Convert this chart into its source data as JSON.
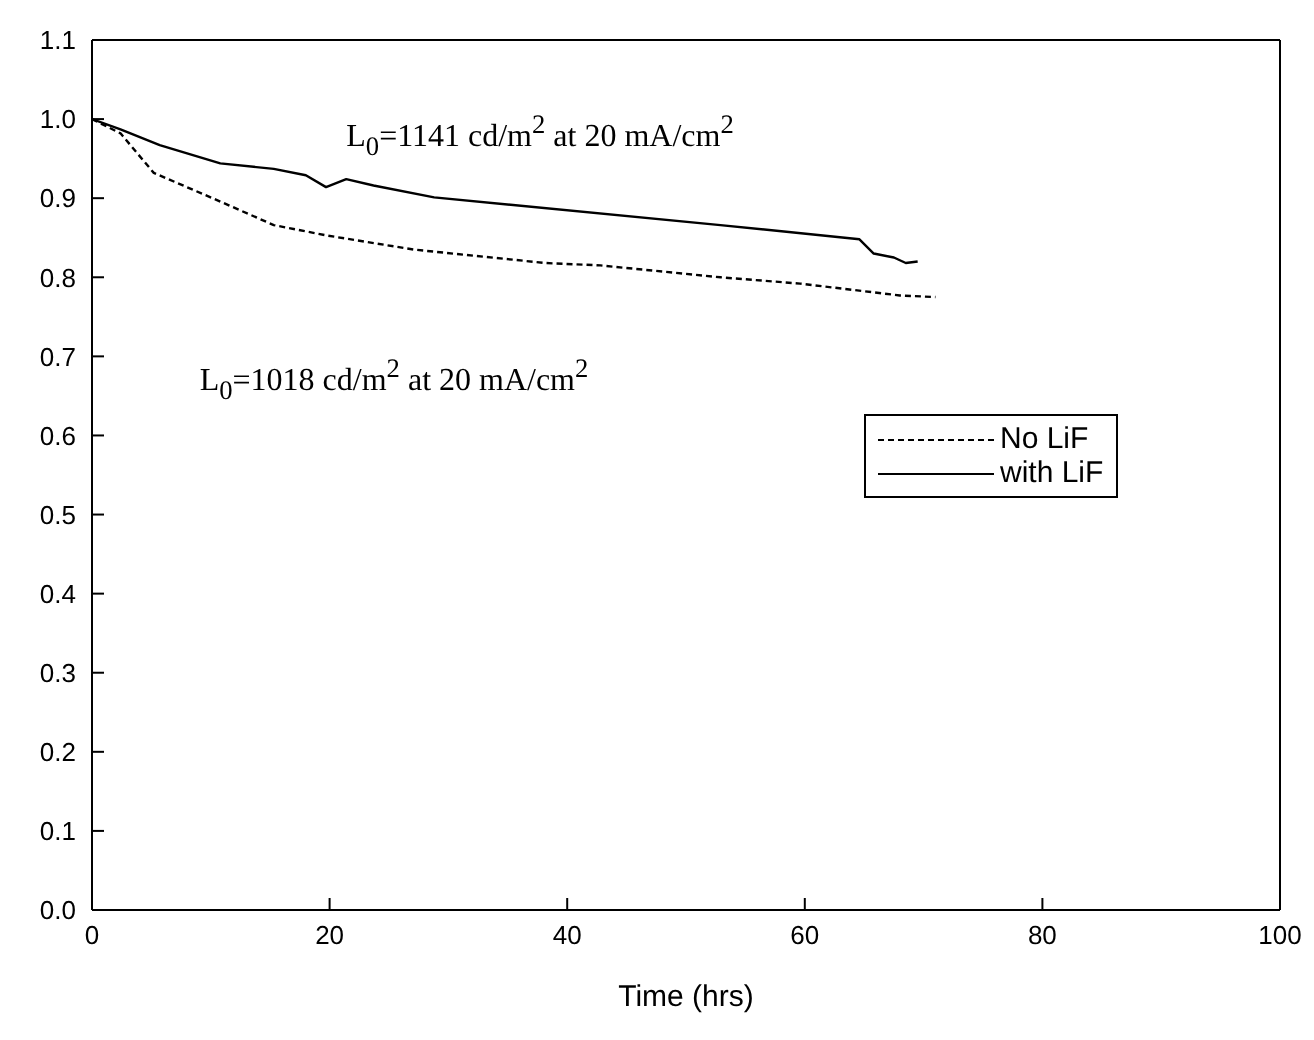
{
  "chart_data": {
    "type": "line",
    "xlabel": "Time (hrs)",
    "xlim": [
      0,
      100
    ],
    "xticks": [
      0,
      20,
      40,
      60,
      80,
      100
    ],
    "ylim": [
      0,
      1.1
    ],
    "yticks": [
      {
        "value": 0,
        "label": "0.0"
      },
      0.1,
      0.2,
      0.3,
      0.4,
      0.5,
      0.6,
      0.7,
      0.8,
      0.9,
      {
        "value": 1,
        "label": "1.0"
      },
      1.1
    ],
    "legend": "right",
    "marker": "none",
    "annotations": [
      "L$_{0}$=1141 cd/m$^{2}$ at 20 mA/cm$^{2}$",
      "L$_{0}$=1018 cd/m$^{2}$ at 20 mA/cm$^{2}$"
    ],
    "series": [
      {
        "name": "No LiF",
        "color": "#000000",
        "line_style": "dashed",
        "x": [
          0,
          2.4,
          5.2,
          10.3,
          15.3,
          19.7,
          27.1,
          38.2,
          42.8,
          52.9,
          59.6,
          68,
          71
        ],
        "values": [
          1.0,
          0.982,
          0.932,
          0.899,
          0.866,
          0.853,
          0.835,
          0.818,
          0.815,
          0.8,
          0.792,
          0.777,
          0.775
        ]
      },
      {
        "name": "with LiF",
        "color": "#000000",
        "line_style": "solid",
        "x": [
          0,
          2.4,
          5.7,
          10.8,
          15.3,
          18,
          19.7,
          21.4,
          23.7,
          28.8,
          52.9,
          64.6,
          65.8,
          67.5,
          68.5,
          69.5
        ],
        "values": [
          1.0,
          0.987,
          0.967,
          0.944,
          0.937,
          0.929,
          0.914,
          0.924,
          0.916,
          0.901,
          0.866,
          0.848,
          0.83,
          0.825,
          0.818,
          0.82
        ]
      }
    ]
  }
}
